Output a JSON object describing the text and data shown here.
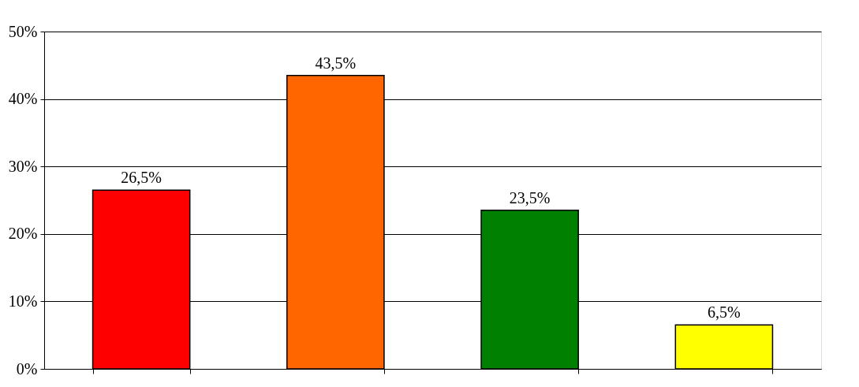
{
  "chart_data": {
    "type": "bar",
    "categories": [
      null,
      null,
      null,
      null
    ],
    "values": [
      26.5,
      43.5,
      23.5,
      6.5
    ],
    "colors": [
      "#ff0000",
      "#ff6600",
      "#008000",
      "#ffff00"
    ],
    "value_labels": [
      "26,5%",
      "43,5%",
      "23,5%",
      "6,5%"
    ],
    "ylim": [
      0,
      50
    ],
    "yticks": [
      {
        "value": 0,
        "label": "0%"
      },
      {
        "value": 10,
        "label": "10%"
      },
      {
        "value": 20,
        "label": "20%"
      },
      {
        "value": 30,
        "label": "30%"
      },
      {
        "value": 40,
        "label": "40%"
      },
      {
        "value": 50,
        "label": "50%"
      }
    ],
    "grid": "y"
  }
}
